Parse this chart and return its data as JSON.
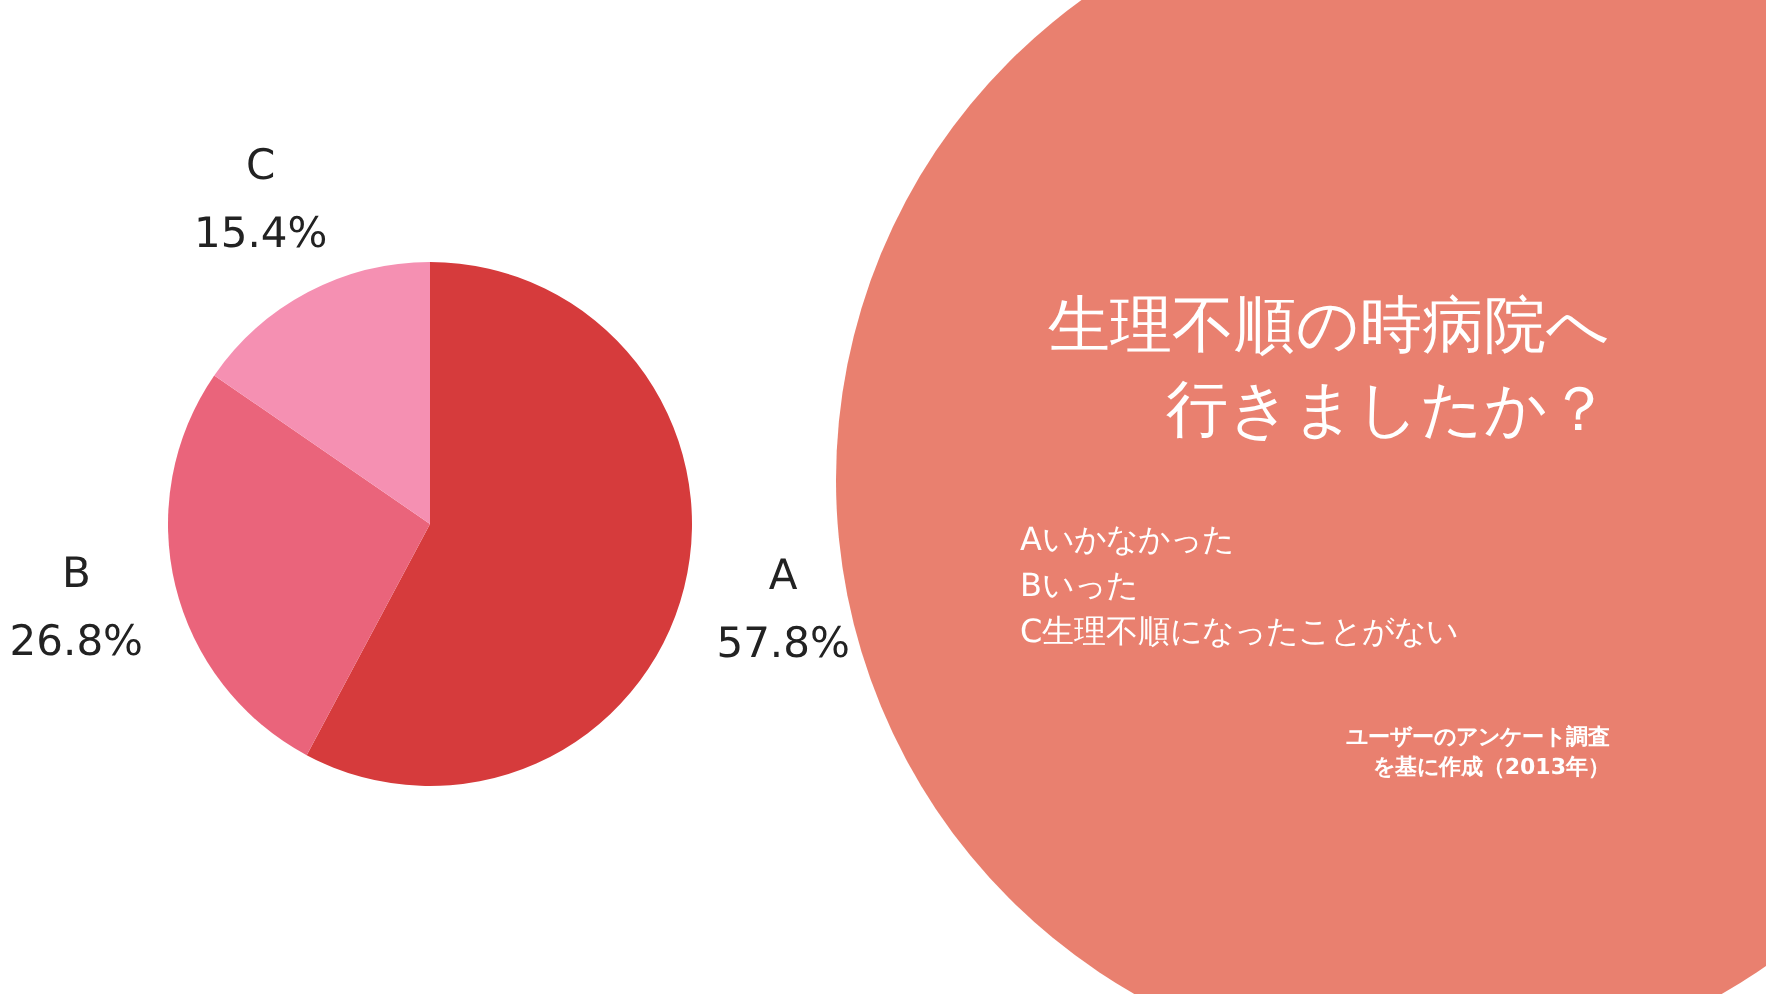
{
  "chart_data": {
    "type": "pie",
    "title": "生理不順の時病院へ行きましたか？",
    "categories": [
      "A",
      "B",
      "C"
    ],
    "values": [
      57.8,
      26.8,
      15.4
    ],
    "colors": [
      "#d63b3c",
      "#ea647b",
      "#f590b2"
    ],
    "value_labels": [
      "57.8%",
      "26.8%",
      "15.4%"
    ],
    "annotations": [
      "Aいかなかった",
      "Bいった",
      "C生理不順になったことがない",
      "ユーザーのアンケート調査",
      "を基に作成（2013年）"
    ]
  }
}
